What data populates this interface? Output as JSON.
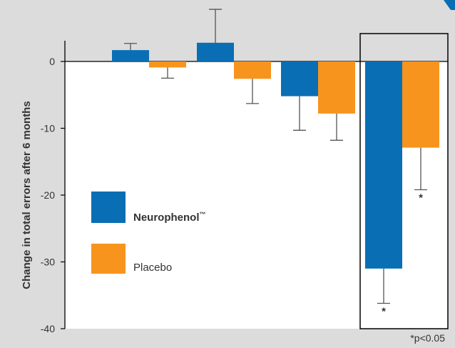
{
  "chart_data": {
    "type": "bar",
    "ylabel": "Change in total errors after 6 months",
    "ylim": [
      -40,
      3
    ],
    "yticks": [
      "0",
      "-10",
      "-20",
      "-30",
      "-40"
    ],
    "categories": [
      "",
      "",
      "",
      ""
    ],
    "series": [
      {
        "name": "Neurophenol",
        "name_suffix": "™",
        "color": "#0a6eb4",
        "values": [
          1.7,
          2.8,
          -5.2,
          -31.0
        ],
        "error_bars": [
          2.7,
          7.8,
          -10.3,
          -36.2
        ],
        "significance": [
          "",
          "",
          "",
          "*"
        ]
      },
      {
        "name": "Placebo",
        "color": "#f7941d",
        "values": [
          -0.9,
          -2.6,
          -7.8,
          -12.9
        ],
        "error_bars": [
          -2.5,
          -6.3,
          -11.8,
          -19.2
        ],
        "significance": [
          "",
          "",
          "",
          "*"
        ]
      }
    ],
    "highlighted_group": 3,
    "footnote": "*p<0.05",
    "colors": {
      "background": "#dcdcdc",
      "plot_area": "#ffffff",
      "axis": "#000000",
      "error_bar": "#555555",
      "accent": "#0a6eb4"
    }
  }
}
